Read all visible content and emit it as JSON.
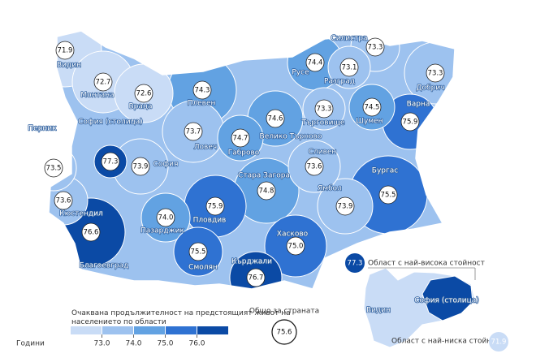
{
  "map": {
    "regions": [
      {
        "name": "Видин",
        "value": 71.9
      },
      {
        "name": "Монтана",
        "value": 72.7
      },
      {
        "name": "Враца",
        "value": 72.6
      },
      {
        "name": "Плевен",
        "value": 74.3
      },
      {
        "name": "Ловеч",
        "value": 73.7
      },
      {
        "name": "Габрово",
        "value": 74.7
      },
      {
        "name": "Велико Търново",
        "value": 74.6
      },
      {
        "name": "Русе",
        "value": 74.4
      },
      {
        "name": "Разград",
        "value": 73.1
      },
      {
        "name": "Силистра",
        "value": 73.3
      },
      {
        "name": "Добрич",
        "value": 73.3
      },
      {
        "name": "Търговище",
        "value": 73.3
      },
      {
        "name": "Шумен",
        "value": 74.5
      },
      {
        "name": "Варна",
        "value": 75.9
      },
      {
        "name": "София (столица)",
        "value": 77.3
      },
      {
        "name": "Перник",
        "value": 73.5
      },
      {
        "name": "София",
        "value": 73.9
      },
      {
        "name": "Кюстендил",
        "value": 73.6
      },
      {
        "name": "Благоевград",
        "value": 76.6
      },
      {
        "name": "Пазарджик",
        "value": 74,
        "value_label": "74.0"
      },
      {
        "name": "Пловдив",
        "value": 75.9
      },
      {
        "name": "Стара Загора",
        "value": 74.8
      },
      {
        "name": "Сливен",
        "value": 73.6
      },
      {
        "name": "Ямбол",
        "value": 73.9
      },
      {
        "name": "Бургас",
        "value": 75.5
      },
      {
        "name": "Хасково",
        "value": 75,
        "value_label": "75.0"
      },
      {
        "name": "Смолян",
        "value": 75.5
      },
      {
        "name": "Кърджали",
        "value": 76.7
      }
    ],
    "legend": {
      "title": "Очаквана продължителност на предстоящият живот на населението по области",
      "unit": "Години",
      "ticks": [
        {
          "value": 73,
          "label": "73.0"
        },
        {
          "value": 74,
          "label": "74.0"
        },
        {
          "value": 75,
          "label": "75.0"
        },
        {
          "value": 76,
          "label": "76.0"
        }
      ],
      "colors": [
        "#c9dcf6",
        "#9dc2ef",
        "#62a2e2",
        "#2f72d2",
        "#0b4aa5"
      ]
    },
    "total": {
      "label": "Общо за страната",
      "value": 75.6
    },
    "inset": {
      "highest": {
        "label": "Област с най-висока стойност",
        "value": 77.3,
        "region": "София (столица)"
      },
      "lowest": {
        "label": "Област с най-ниска стойност",
        "value": 71.9,
        "region": "Видин"
      }
    }
  }
}
